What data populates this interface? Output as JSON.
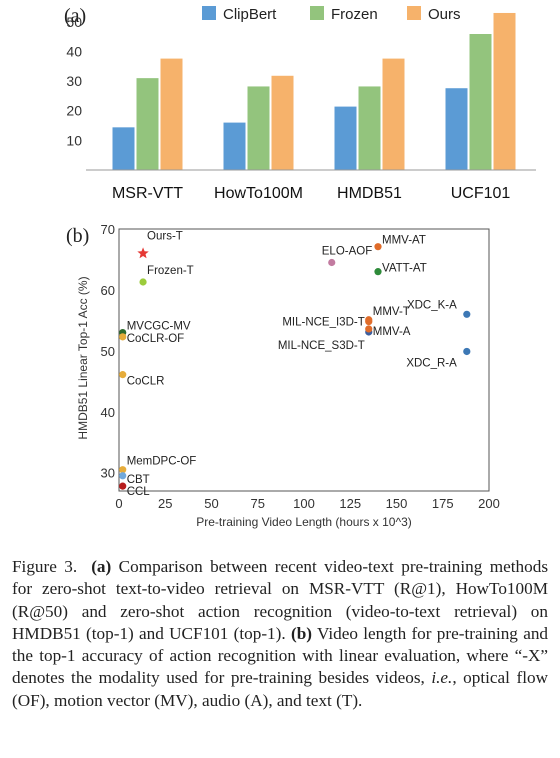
{
  "figure": {
    "panel_a_label": "(a)",
    "panel_b_label": "(b)"
  },
  "chart_data": [
    {
      "type": "bar",
      "categories": [
        "MSR-VTT",
        "HowTo100M",
        "HMDB51",
        "UCF101"
      ],
      "series": [
        {
          "name": "ClipBert",
          "color": "#5b9bd5",
          "values": [
            14.4,
            16.0,
            21.4,
            27.6
          ]
        },
        {
          "name": "Frozen",
          "color": "#93c47d",
          "values": [
            31.0,
            28.2,
            28.2,
            45.9
          ]
        },
        {
          "name": "Ours",
          "color": "#f6b26b",
          "values": [
            37.6,
            31.8,
            37.6,
            53.0
          ]
        }
      ],
      "yticks": [
        10,
        20,
        30,
        40,
        50
      ],
      "ylim": [
        0,
        54
      ],
      "grid": false,
      "legend": "top"
    },
    {
      "type": "scatter",
      "xlabel": "Pre-training Video Length (hours x 10^3)",
      "ylabel": "HMDB51 Linear Top-1 Acc (%)",
      "xlim": [
        0,
        200
      ],
      "ylim": [
        27,
        70
      ],
      "xticks": [
        0,
        25,
        50,
        75,
        100,
        125,
        150,
        175,
        200
      ],
      "yticks": [
        30,
        40,
        50,
        60,
        70
      ],
      "grid": false,
      "points": [
        {
          "label": "Ours-T",
          "x": 13,
          "y": 66.0,
          "color": "#e53935",
          "marker": "star"
        },
        {
          "label": "Frozen-T",
          "x": 13,
          "y": 61.3,
          "color": "#9ccc3c"
        },
        {
          "label": "MVCGC-MV",
          "x": 2,
          "y": 53.0,
          "color": "#2e6b2e"
        },
        {
          "label": "CoCLR-OF",
          "x": 2,
          "y": 52.3,
          "color": "#e6ac3a"
        },
        {
          "label": "CoCLR",
          "x": 2,
          "y": 46.1,
          "color": "#e6ac3a"
        },
        {
          "label": "MemDPC-OF",
          "x": 2,
          "y": 30.5,
          "color": "#e6ac3a"
        },
        {
          "label": "CBT",
          "x": 2,
          "y": 29.5,
          "color": "#6fa8dc"
        },
        {
          "label": "CCL",
          "x": 2,
          "y": 27.8,
          "color": "#b71c1c"
        },
        {
          "label": "ELO-AOF",
          "x": 115,
          "y": 64.5,
          "color": "#c27ba0"
        },
        {
          "label": "MMV-AT",
          "x": 140,
          "y": 67.1,
          "color": "#e06c2a"
        },
        {
          "label": "VATT-AT",
          "x": 140,
          "y": 63.0,
          "color": "#2e8b3a"
        },
        {
          "label": "MIL-NCE_I3D-T",
          "x": 135,
          "y": 54.8,
          "color": "#e06c2a"
        },
        {
          "label": "MMV-T",
          "x": 135,
          "y": 55.1,
          "color": "#e06c2a"
        },
        {
          "label": "MIL-NCE_S3D-T",
          "x": 135,
          "y": 53.1,
          "color": "#3d5f9e"
        },
        {
          "label": "MMV-A",
          "x": 135,
          "y": 53.6,
          "color": "#e06c2a"
        },
        {
          "label": "XDC_K-A",
          "x": 188,
          "y": 56.0,
          "color": "#3d78b5"
        },
        {
          "label": "XDC_R-A",
          "x": 188,
          "y": 49.9,
          "color": "#3d78b5"
        }
      ]
    }
  ],
  "caption": {
    "fig_label": "Figure 3.",
    "part_a_label": "(a)",
    "part_a_text": " Comparison between recent video-text pre-training methods for zero-shot text-to-video retrieval on MSR-VTT (R@1), HowTo100M (R@50) and zero-shot action recognition (video-to-text retrieval) on HMDB51 (top-1) and UCF101 (top-1). ",
    "part_b_label": "(b)",
    "part_b_text_1": " Video length for pre-training and the top-1 accuracy of action recognition with linear evaluation, where “-X” denotes the modality used for pre-training besides videos, ",
    "ie": "i.e.",
    "part_b_text_2": ", optical flow (OF), motion vector (MV), audio (A), and text (T)."
  }
}
